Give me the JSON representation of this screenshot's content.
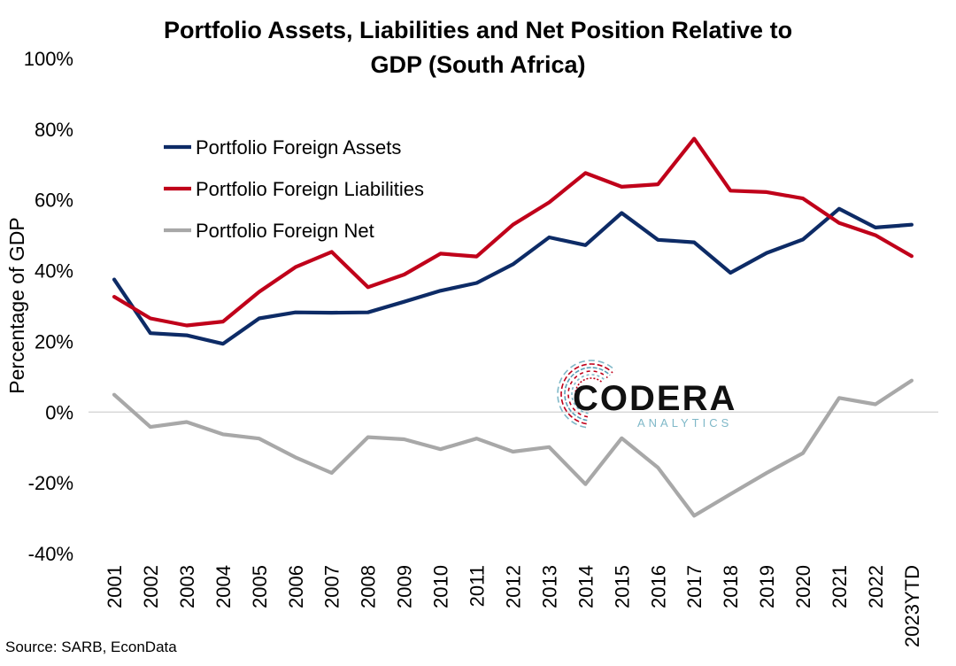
{
  "chart_data": {
    "type": "line",
    "title_line1": "Portfolio Assets, Liabilities and Net Position Relative to",
    "title_line2": "GDP (South Africa)",
    "ylabel": "Percentage of GDP",
    "xlabel": "",
    "ylim": [
      -40,
      100
    ],
    "yticks": [
      "100%",
      "80%",
      "60%",
      "40%",
      "20%",
      "0%",
      "-20%",
      "-40%"
    ],
    "ytick_values": [
      100,
      80,
      60,
      40,
      20,
      0,
      -20,
      -40
    ],
    "categories": [
      "2001",
      "2002",
      "2003",
      "2004",
      "2005",
      "2006",
      "2007",
      "2008",
      "2009",
      "2010",
      "2011",
      "2012",
      "2013",
      "2014",
      "2015",
      "2016",
      "2017",
      "2018",
      "2019",
      "2020",
      "2021",
      "2022",
      "2023YTD"
    ],
    "series": [
      {
        "name": "Portfolio Foreign Assets",
        "color": "#0d2b66",
        "values": [
          37.5,
          22.3,
          21.7,
          19.3,
          26.5,
          28.2,
          28.1,
          28.2,
          31.2,
          34.3,
          36.5,
          41.8,
          49.4,
          47.2,
          56.3,
          48.7,
          48.0,
          39.4,
          45.0,
          48.8,
          57.5,
          52.2,
          53.0
        ]
      },
      {
        "name": "Portfolio Foreign Liabilities",
        "color": "#c0001a",
        "values": [
          32.6,
          26.5,
          24.5,
          25.6,
          34.0,
          41.0,
          45.3,
          35.3,
          38.9,
          44.8,
          44.0,
          53.0,
          59.3,
          67.6,
          63.7,
          64.4,
          77.3,
          62.6,
          62.2,
          60.4,
          53.5,
          50.0,
          44.1
        ]
      },
      {
        "name": "Portfolio Foreign Net",
        "color": "#a8a8a8",
        "values": [
          4.9,
          -4.2,
          -2.8,
          -6.3,
          -7.5,
          -12.8,
          -17.2,
          -7.1,
          -7.7,
          -10.5,
          -7.5,
          -11.2,
          -9.9,
          -20.4,
          -7.4,
          -15.7,
          -29.3,
          -23.2,
          -17.2,
          -11.6,
          4.0,
          2.2,
          8.9
        ]
      }
    ],
    "legend_position": "top-left",
    "grid": false
  },
  "logo": {
    "main": "CODERA",
    "sub": "ANALYTICS"
  },
  "source": "Source: SARB, EconData"
}
